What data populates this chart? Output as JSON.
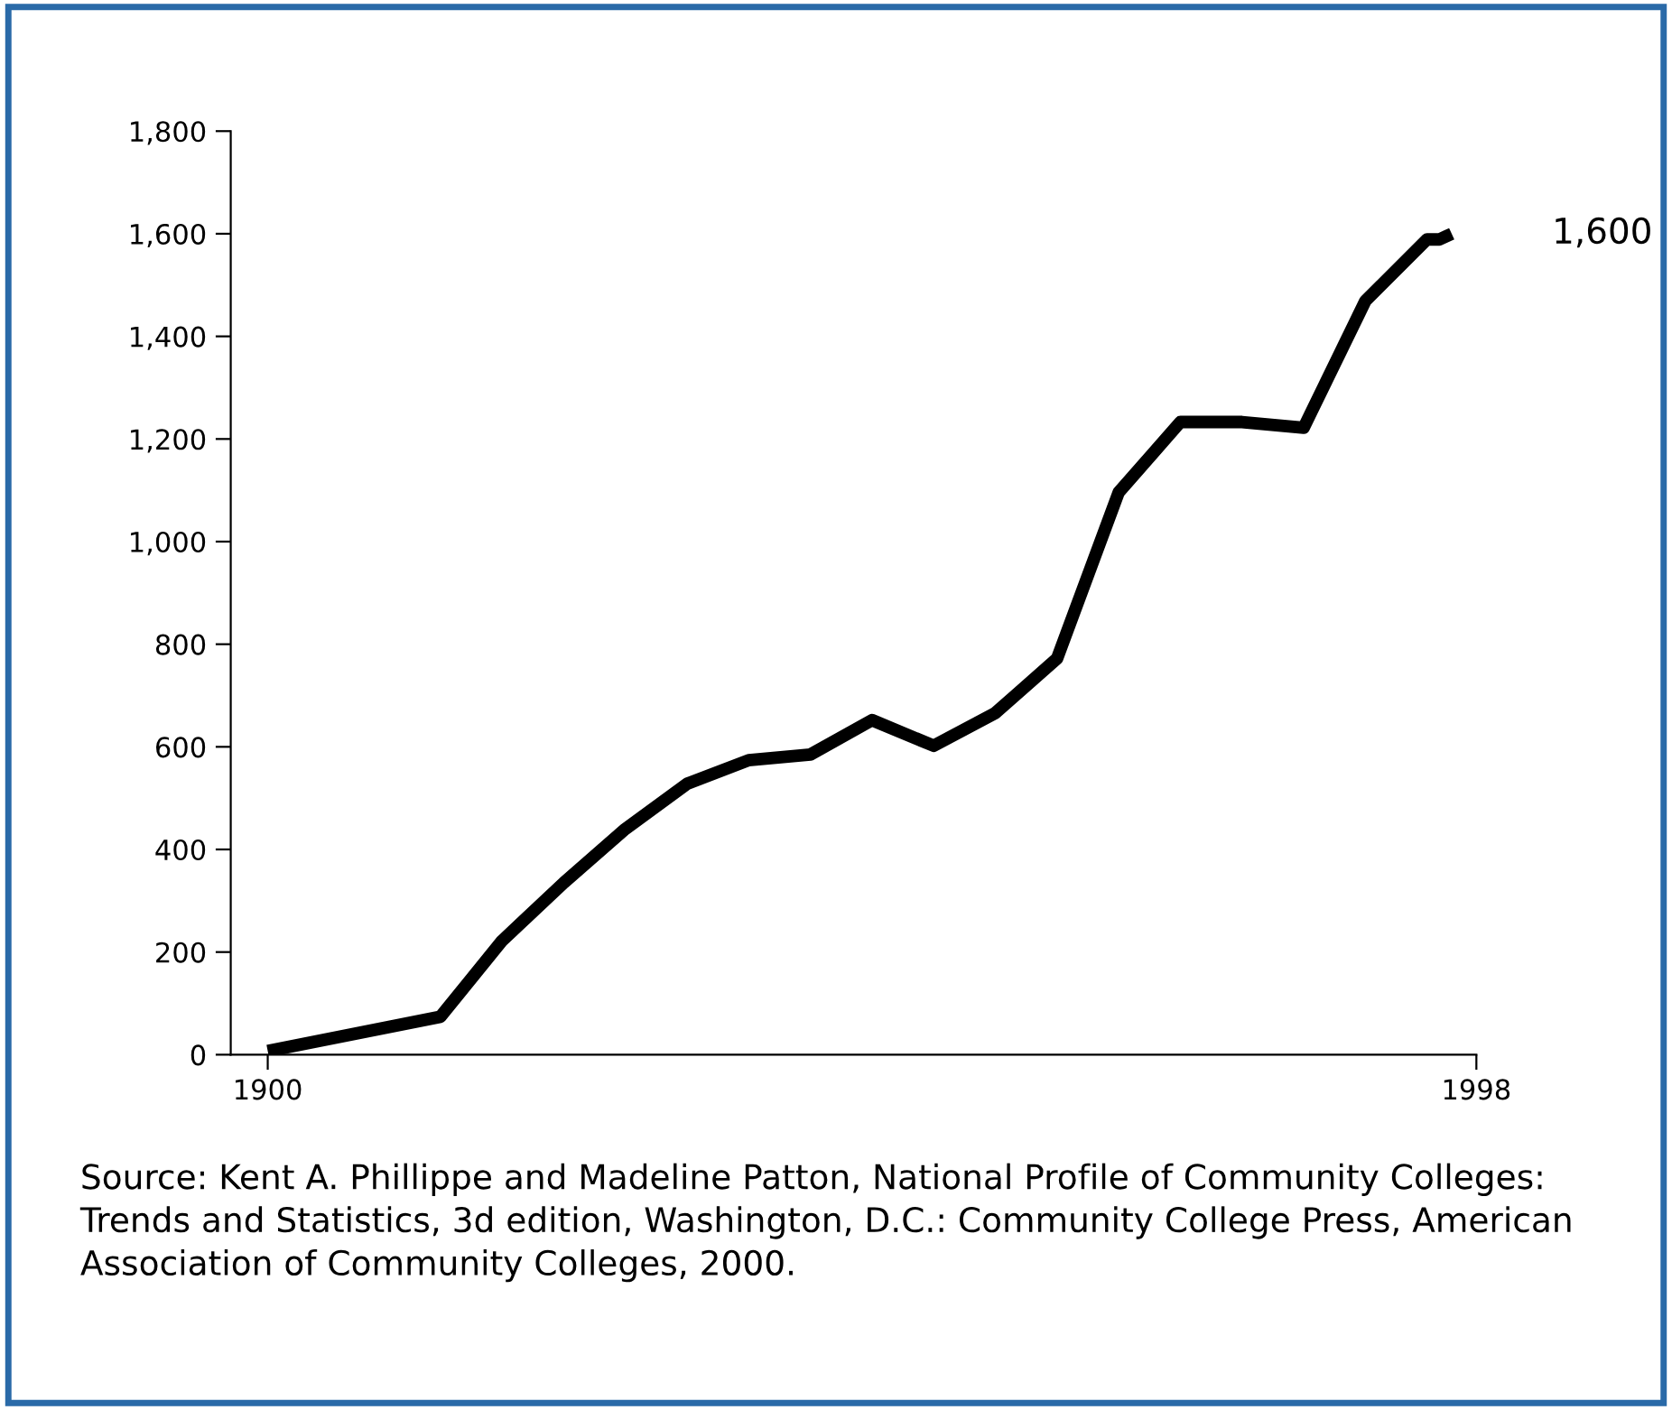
{
  "chart_data": {
    "type": "line",
    "x": [
      1900,
      1914,
      1919,
      1924,
      1929,
      1934,
      1939,
      1944,
      1949,
      1954,
      1959,
      1964,
      1969,
      1974,
      1979,
      1984,
      1989,
      1994,
      1995,
      1996
    ],
    "series": [
      {
        "color": "#000000",
        "values": [
          7,
          74,
          222,
          335,
          440,
          528,
          574,
          585,
          652,
          602,
          666,
          772,
          1096,
          1233,
          1233,
          1222,
          1469,
          1589,
          1589,
          1600
        ]
      }
    ],
    "xlim": [
      1897,
      1998
    ],
    "xticks": [
      1900,
      1998
    ],
    "ylim": [
      0,
      1800
    ],
    "yticks": [
      {
        "value": 0,
        "label": "0"
      },
      {
        "value": 200,
        "label": "200"
      },
      {
        "value": 400,
        "label": "400"
      },
      {
        "value": 600,
        "label": "600"
      },
      {
        "value": 800,
        "label": "800"
      },
      {
        "value": 1000,
        "label": "1,000"
      },
      {
        "value": 1200,
        "label": "1,200"
      },
      {
        "value": 1400,
        "label": "1,400"
      },
      {
        "value": 1600,
        "label": "1,600"
      },
      {
        "value": 1800,
        "label": "1,800"
      }
    ],
    "grid": false,
    "marker": "none",
    "line_style": "solid",
    "annotations": [
      {
        "text": "1,600",
        "x": 1996,
        "y": 1600
      },
      "Source: Kent A. Phillippe and Madeline Patton, National Profile of Community Colleges: Trends and Statistics, 3d edition, Washington, D.C.: Community College Press, American Association of Community Colleges, 2000."
    ]
  }
}
